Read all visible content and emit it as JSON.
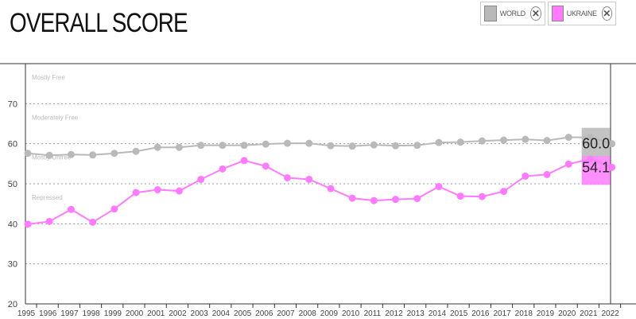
{
  "title": "OVERALL SCORE",
  "legend": [
    {
      "label": "WORLD",
      "color": "#b9b9b9",
      "close_icon": "close-icon"
    },
    {
      "label": "UKRAINE",
      "color": "#ff7bff",
      "close_icon": "close-icon"
    }
  ],
  "chart_data": {
    "type": "line",
    "x": [
      "1995",
      "1996",
      "1997",
      "1998",
      "1999",
      "2000",
      "2001",
      "2002",
      "2003",
      "2004",
      "2005",
      "2006",
      "2007",
      "2008",
      "2009",
      "2010",
      "2011",
      "2012",
      "2013",
      "2014",
      "2015",
      "2016",
      "2017",
      "2018",
      "2019",
      "2020",
      "2021",
      "2022"
    ],
    "ylim": [
      20,
      80
    ],
    "yticks": [
      20,
      30,
      40,
      50,
      60,
      70
    ],
    "zones": [
      {
        "label": "Mostly Free",
        "y": 80
      },
      {
        "label": "Moderately Free",
        "y": 70
      },
      {
        "label": "Mostly Unfree",
        "y": 60
      },
      {
        "label": "Repressed",
        "y": 50
      }
    ],
    "series": [
      {
        "name": "WORLD",
        "color": "#b9b9b9",
        "values": [
          57.6,
          57.1,
          57.3,
          57.2,
          57.6,
          58.1,
          59.1,
          59.1,
          59.6,
          59.6,
          59.6,
          59.9,
          60.1,
          60.1,
          59.5,
          59.4,
          59.7,
          59.5,
          59.6,
          60.3,
          60.4,
          60.7,
          60.9,
          61.1,
          60.8,
          61.6,
          61.6,
          60.0
        ],
        "last_label": "60.0"
      },
      {
        "name": "UKRAINE",
        "color": "#ff7bff",
        "values": [
          39.9,
          40.6,
          43.6,
          40.4,
          43.7,
          47.8,
          48.5,
          48.2,
          51.1,
          53.7,
          55.8,
          54.4,
          51.5,
          51.1,
          48.8,
          46.4,
          45.8,
          46.1,
          46.3,
          49.3,
          46.9,
          46.8,
          48.1,
          51.9,
          52.3,
          54.9,
          56.2,
          54.1
        ],
        "last_label": "54.1"
      }
    ]
  }
}
